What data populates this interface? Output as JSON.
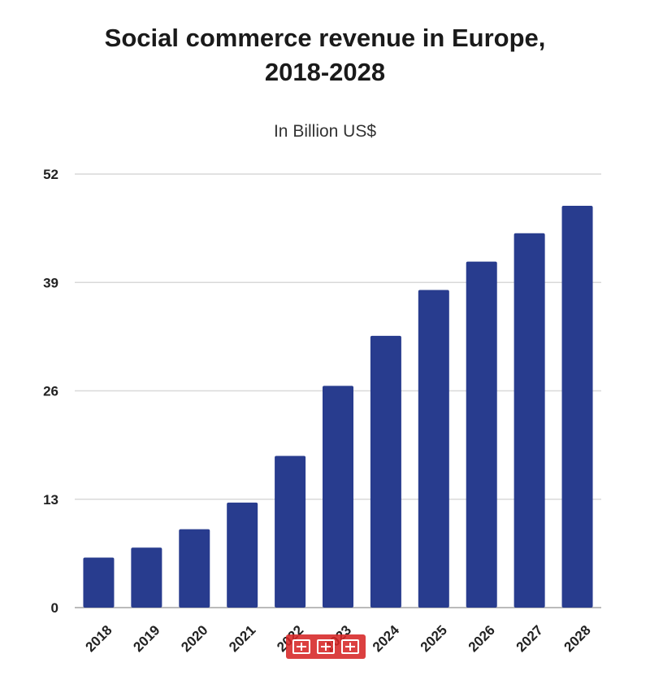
{
  "chart_data": {
    "type": "bar",
    "title": [
      "Social commerce revenue in Europe,",
      "2018-2028"
    ],
    "subtitle": "In Billion US$",
    "categories": [
      "2018",
      "2019",
      "2020",
      "2021",
      "2022",
      "2023",
      "2024",
      "2025",
      "2026",
      "2027",
      "2028"
    ],
    "values": [
      6,
      7.2,
      9.4,
      12.6,
      18.2,
      26.6,
      32.6,
      38.1,
      41.5,
      44.9,
      48.2
    ],
    "ylim": [
      0,
      52
    ],
    "yticks": [
      "0",
      "13",
      "26",
      "39",
      "52"
    ],
    "grid": true,
    "legend": "none",
    "bar_color": "#283c8e",
    "grid_color": "#d9d9d9",
    "axis_color": "#bbbbbb"
  },
  "watermark": {
    "icon": "red-stamp-logo"
  }
}
